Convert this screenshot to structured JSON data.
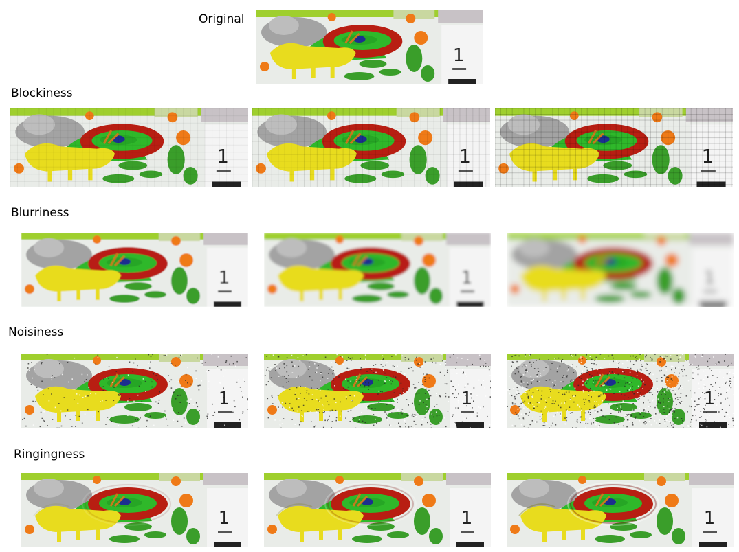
{
  "original": {
    "label": "Original"
  },
  "rows": [
    {
      "label": "Blockiness",
      "variant": "blocky"
    },
    {
      "label": "Blurriness",
      "variant": "blur"
    },
    {
      "label": "Noisiness",
      "variant": "noise"
    },
    {
      "label": "Ringingness",
      "variant": "ring"
    }
  ],
  "scene": {
    "calendar_glyph": "1",
    "colors": {
      "background": "#e9ece8",
      "goat": "#e8dc1e",
      "ring_red": "#b81e12",
      "ring_green": "#2fb82a",
      "leaf": "#3a9e2a",
      "flower": "#ef7a17",
      "sheep": "#a3a3a3",
      "calendar": "#f4f4f4"
    }
  }
}
